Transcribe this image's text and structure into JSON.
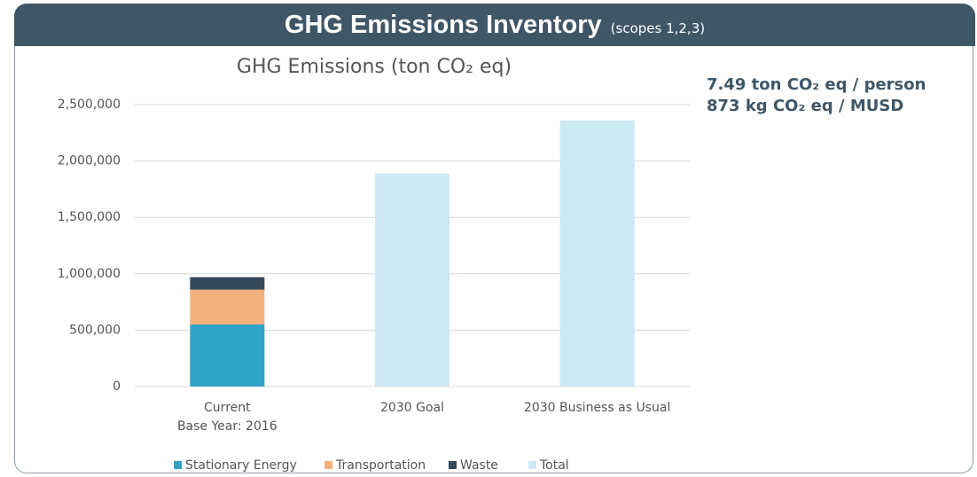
{
  "header": {
    "title": "GHG Emissions Inventory",
    "subtitle": "(scopes 1,2,3)"
  },
  "notes": [
    "7.49 ton CO₂ eq / person",
    "873 kg CO₂ eq / MUSD"
  ],
  "chart_data": {
    "type": "stacked_bar",
    "title": "GHG Emissions (ton CO₂ eq)",
    "categories": [
      "Current\nBase Year: 2016",
      "2030 Goal",
      "2030 Business as Usual"
    ],
    "series": [
      {
        "name": "Stationary Energy",
        "color": "#2fa3c8",
        "values": [
          550000,
          null,
          null
        ]
      },
      {
        "name": "Transportation",
        "color": "#f4b07a",
        "values": [
          310000,
          null,
          null
        ]
      },
      {
        "name": "Waste",
        "color": "#344a5a",
        "values": [
          110000,
          null,
          null
        ]
      },
      {
        "name": "Total",
        "color": "#cde9f3",
        "values": [
          null,
          1890000,
          2360000
        ]
      }
    ],
    "ylim": [
      0,
      2500000
    ],
    "yticks": [
      {
        "value": 0,
        "label": "0"
      },
      {
        "value": 500000,
        "label": "500,000"
      },
      {
        "value": 1000000,
        "label": "1,000,000"
      },
      {
        "value": 1500000,
        "label": "1,500,000"
      },
      {
        "value": 2000000,
        "label": "2,000,000"
      },
      {
        "value": 2500000,
        "label": "2,500,000"
      }
    ],
    "grid": true,
    "legend": "bottom"
  }
}
